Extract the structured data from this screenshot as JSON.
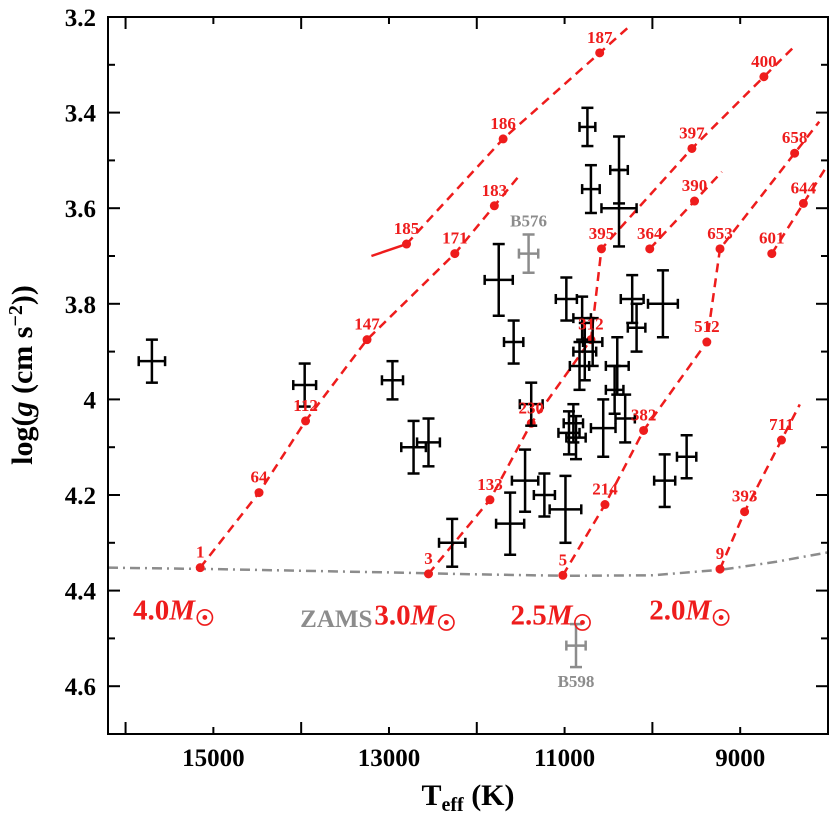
{
  "chart_data": {
    "type": "scatter",
    "xlabel_main": "T",
    "xlabel_sub": "eff",
    "xlabel_unit": " (K)",
    "ylabel_prefix": "log(",
    "ylabel_g": "g",
    "ylabel_units": " (cm s",
    "ylabel_exp": "−2",
    "ylabel_suffix": "))",
    "xlim": [
      16200,
      8000
    ],
    "ylim": [
      4.7,
      3.2
    ],
    "x_inverted": true,
    "y_inverted": true,
    "x_ticks": [
      15000,
      13000,
      11000,
      9000
    ],
    "y_ticks": [
      3.2,
      3.4,
      3.6,
      3.8,
      4.0,
      4.2,
      4.4,
      4.6
    ],
    "y_tick_labels": [
      "3.2",
      "3.4",
      "3.6",
      "3.8",
      "4",
      "4.2",
      "4.4",
      "4.6"
    ],
    "colors": {
      "track": "#ee1c1c",
      "stars": "#000000",
      "highlight": "#8c8c8c",
      "zams": "#8c8c8c"
    },
    "zams": {
      "label": "ZAMS",
      "points": [
        [
          16200,
          4.352
        ],
        [
          15000,
          4.355
        ],
        [
          13000,
          4.362
        ],
        [
          12000,
          4.366
        ],
        [
          11000,
          4.369
        ],
        [
          10000,
          4.368
        ],
        [
          9200,
          4.356
        ],
        [
          8600,
          4.34
        ],
        [
          8000,
          4.32
        ]
      ]
    },
    "tracks": [
      {
        "mass": "4.0",
        "points": [
          {
            "label": "1",
            "x": 15150,
            "y": 4.352
          },
          {
            "label": "64",
            "x": 14480,
            "y": 4.195
          },
          {
            "label": "112",
            "x": 13950,
            "y": 4.045
          },
          {
            "label": "147",
            "x": 13250,
            "y": 3.875
          },
          {
            "label": "171",
            "x": 12250,
            "y": 3.695
          },
          {
            "label": "183",
            "x": 11800,
            "y": 3.595
          }
        ]
      },
      {
        "mass": "4.0",
        "points": [
          {
            "label": "185",
            "x": 12800,
            "y": 3.675
          },
          {
            "label": "186",
            "x": 11700,
            "y": 3.455
          },
          {
            "label": "187",
            "x": 10600,
            "y": 3.275
          }
        ]
      },
      {
        "mass": "3.0",
        "points": [
          {
            "label": "3",
            "x": 12550,
            "y": 4.365
          },
          {
            "label": "133",
            "x": 11850,
            "y": 4.21
          },
          {
            "label": "230",
            "x": 11380,
            "y": 4.05
          },
          {
            "label": "312",
            "x": 10700,
            "y": 3.875
          },
          {
            "label": "395",
            "x": 10580,
            "y": 3.685
          },
          {
            "label": "397",
            "x": 9550,
            "y": 3.475
          },
          {
            "label": "400",
            "x": 8730,
            "y": 3.325
          }
        ]
      },
      {
        "mass": "3.0",
        "points": [
          {
            "label": "364",
            "x": 10030,
            "y": 3.685
          },
          {
            "label": "390",
            "x": 9520,
            "y": 3.585
          }
        ]
      },
      {
        "mass": "2.5",
        "points": [
          {
            "label": "5",
            "x": 11020,
            "y": 4.368
          },
          {
            "label": "214",
            "x": 10540,
            "y": 4.22
          },
          {
            "label": "382",
            "x": 10100,
            "y": 4.065
          },
          {
            "label": "512",
            "x": 9380,
            "y": 3.88
          },
          {
            "label": "653",
            "x": 9230,
            "y": 3.685
          },
          {
            "label": "658",
            "x": 8380,
            "y": 3.485
          }
        ]
      },
      {
        "mass": "2.5",
        "points": [
          {
            "label": "601",
            "x": 8640,
            "y": 3.695
          },
          {
            "label": "644",
            "x": 8280,
            "y": 3.59
          }
        ]
      },
      {
        "mass": "2.0",
        "points": [
          {
            "label": "9",
            "x": 9230,
            "y": 4.355
          },
          {
            "label": "393",
            "x": 8950,
            "y": 4.235
          },
          {
            "label": "711",
            "x": 8530,
            "y": 4.085
          }
        ]
      }
    ],
    "mass_labels": [
      {
        "text": "4.0",
        "x": 15450,
        "y": 4.44
      },
      {
        "text": "3.0",
        "x": 12700,
        "y": 4.45
      },
      {
        "text": "2.5",
        "x": 11150,
        "y": 4.45
      },
      {
        "text": "2.0",
        "x": 9570,
        "y": 4.44
      }
    ],
    "mass_unit": "M",
    "stars": [
      {
        "x": 15700,
        "y": 3.92,
        "ex": 150,
        "ey": 0.045
      },
      {
        "x": 13960,
        "y": 3.97,
        "ex": 130,
        "ey": 0.045
      },
      {
        "x": 12960,
        "y": 3.96,
        "ex": 120,
        "ey": 0.04
      },
      {
        "x": 12720,
        "y": 4.1,
        "ex": 140,
        "ey": 0.055
      },
      {
        "x": 12550,
        "y": 4.09,
        "ex": 130,
        "ey": 0.05
      },
      {
        "x": 12280,
        "y": 4.3,
        "ex": 150,
        "ey": 0.05
      },
      {
        "x": 11750,
        "y": 3.75,
        "ex": 160,
        "ey": 0.075
      },
      {
        "x": 11580,
        "y": 3.88,
        "ex": 110,
        "ey": 0.045
      },
      {
        "x": 11380,
        "y": 4.01,
        "ex": 130,
        "ey": 0.045
      },
      {
        "x": 11450,
        "y": 4.17,
        "ex": 150,
        "ey": 0.065
      },
      {
        "x": 11620,
        "y": 4.26,
        "ex": 160,
        "ey": 0.065
      },
      {
        "x": 11230,
        "y": 4.2,
        "ex": 120,
        "ey": 0.045
      },
      {
        "x": 10980,
        "y": 3.79,
        "ex": 120,
        "ey": 0.045
      },
      {
        "x": 10800,
        "y": 3.83,
        "ex": 100,
        "ey": 0.045
      },
      {
        "x": 10950,
        "y": 4.07,
        "ex": 120,
        "ey": 0.045
      },
      {
        "x": 10900,
        "y": 4.05,
        "ex": 110,
        "ey": 0.04
      },
      {
        "x": 10870,
        "y": 4.08,
        "ex": 110,
        "ey": 0.045
      },
      {
        "x": 10830,
        "y": 3.93,
        "ex": 110,
        "ey": 0.05
      },
      {
        "x": 10770,
        "y": 3.9,
        "ex": 130,
        "ey": 0.06
      },
      {
        "x": 10680,
        "y": 3.88,
        "ex": 110,
        "ey": 0.05
      },
      {
        "x": 10990,
        "y": 4.23,
        "ex": 180,
        "ey": 0.07
      },
      {
        "x": 10740,
        "y": 3.43,
        "ex": 90,
        "ey": 0.04
      },
      {
        "x": 10700,
        "y": 3.56,
        "ex": 100,
        "ey": 0.05
      },
      {
        "x": 10380,
        "y": 3.52,
        "ex": 100,
        "ey": 0.07
      },
      {
        "x": 10380,
        "y": 3.6,
        "ex": 200,
        "ey": 0.08
      },
      {
        "x": 10400,
        "y": 3.93,
        "ex": 130,
        "ey": 0.06
      },
      {
        "x": 10310,
        "y": 4.04,
        "ex": 110,
        "ey": 0.05
      },
      {
        "x": 10560,
        "y": 4.06,
        "ex": 140,
        "ey": 0.06
      },
      {
        "x": 10430,
        "y": 3.98,
        "ex": 100,
        "ey": 0.05
      },
      {
        "x": 10230,
        "y": 3.79,
        "ex": 130,
        "ey": 0.05
      },
      {
        "x": 10180,
        "y": 3.85,
        "ex": 100,
        "ey": 0.05
      },
      {
        "x": 9880,
        "y": 3.8,
        "ex": 170,
        "ey": 0.07
      },
      {
        "x": 9610,
        "y": 4.12,
        "ex": 110,
        "ey": 0.045
      },
      {
        "x": 9860,
        "y": 4.17,
        "ex": 120,
        "ey": 0.055
      }
    ],
    "highlighted_stars": [
      {
        "name": "B576",
        "x": 11410,
        "y": 3.695,
        "ex": 110,
        "ey": 0.04
      },
      {
        "name": "B598",
        "x": 10870,
        "y": 4.515,
        "ex": 110,
        "ey": 0.045
      }
    ]
  }
}
